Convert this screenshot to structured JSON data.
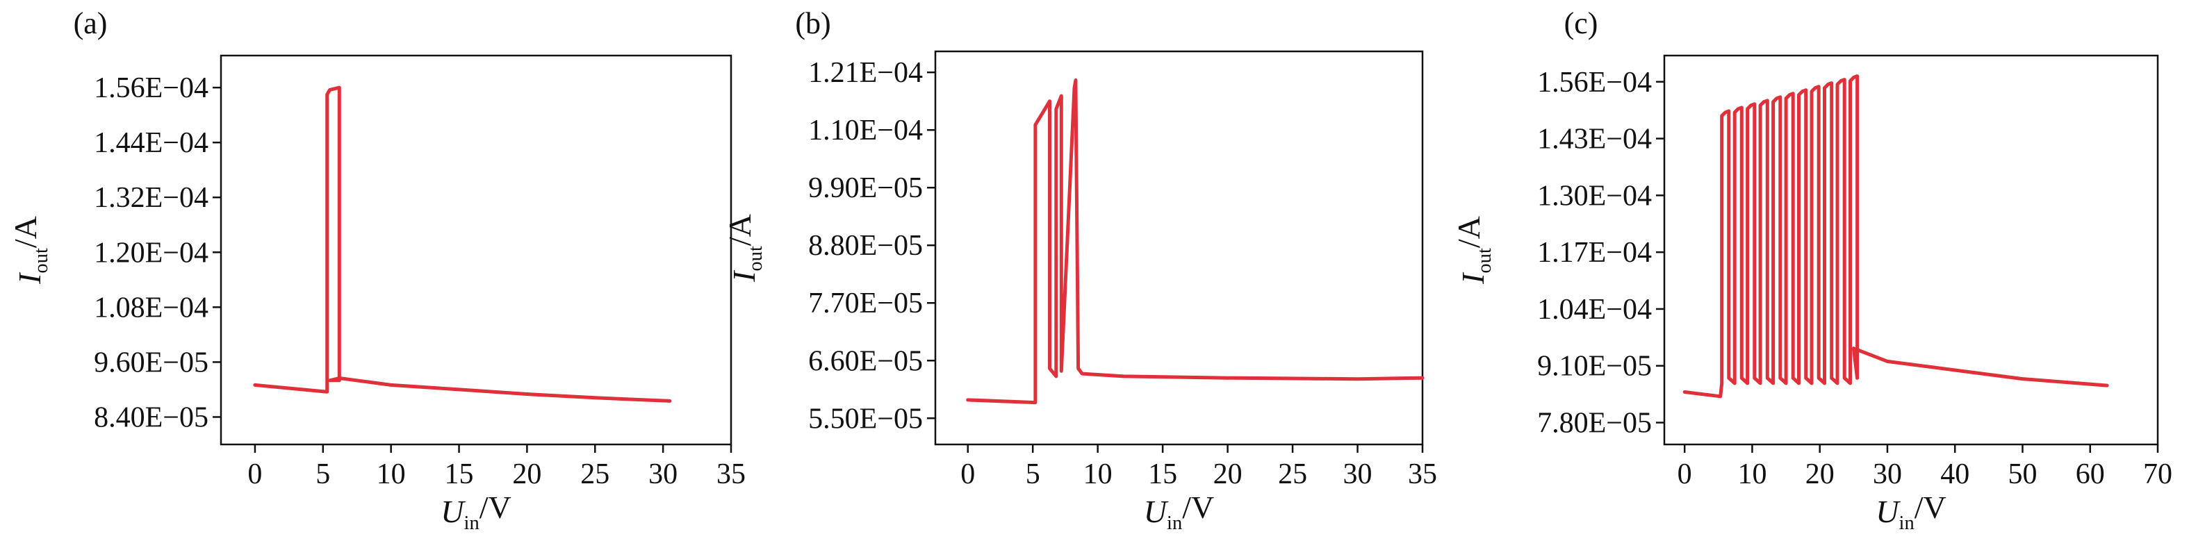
{
  "chart_data": [
    {
      "panel": "(a)",
      "type": "line",
      "xlabel": "U_in/V",
      "ylabel": "I_out/A",
      "xlim": [
        -2.5,
        35
      ],
      "ylim": [
        7.8e-05,
        0.000163
      ],
      "x_ticks": [
        "0",
        "5",
        "10",
        "15",
        "20",
        "25",
        "30",
        "35"
      ],
      "y_ticks": [
        "8.40E−05",
        "9.60E−05",
        "1.08E−04",
        "1.20E−04",
        "1.32E−04",
        "1.44E−04",
        "1.56E−04"
      ],
      "grid": false,
      "line_color": "#e0303a",
      "series": [
        {
          "x": [
            0,
            5.3,
            5.3,
            5.5,
            6.2,
            6.2,
            5.5,
            5.5,
            6.2,
            6.2,
            10,
            15,
            20,
            25,
            30.5
          ],
          "y": [
            9.1e-05,
            8.95e-05,
            0.0001545,
            0.0001555,
            0.000156,
            9.25e-05,
            9.2e-05,
            9.2e-05,
            9.2e-05,
            9.25e-05,
            9.1e-05,
            9e-05,
            8.9e-05,
            8.82e-05,
            8.75e-05
          ]
        }
      ]
    },
    {
      "panel": "(b)",
      "type": "line",
      "xlabel": "U_in/V",
      "ylabel": "I_out/A",
      "xlim": [
        -2.5,
        35
      ],
      "ylim": [
        5e-05,
        0.000125
      ],
      "x_ticks": [
        "0",
        "5",
        "10",
        "15",
        "20",
        "25",
        "30",
        "35"
      ],
      "y_ticks": [
        "5.50E−05",
        "6.60E−05",
        "7.70E−05",
        "8.80E−05",
        "9.90E−05",
        "1.10E−04",
        "1.21E−04"
      ],
      "grid": false,
      "line_color": "#e0303a",
      "series": [
        {
          "x": [
            0,
            5.2,
            5.2,
            6.3,
            6.3,
            6.8,
            6.8,
            7.2,
            7.2,
            8.2,
            8.3,
            8.5,
            8.8,
            12,
            20,
            30,
            35
          ],
          "y": [
            5.85e-05,
            5.8e-05,
            0.000111,
            0.0001155,
            6.45e-05,
            6.3e-05,
            0.000114,
            0.0001165,
            6.4e-05,
            0.000118,
            0.0001195,
            6.45e-05,
            6.35e-05,
            6.3e-05,
            6.27e-05,
            6.25e-05,
            6.27e-05
          ]
        }
      ]
    },
    {
      "panel": "(c)",
      "type": "line",
      "xlabel": "U_in/V",
      "ylabel": "I_out/A",
      "xlim": [
        -3,
        70
      ],
      "ylim": [
        7.3e-05,
        0.000162
      ],
      "x_ticks": [
        "0",
        "10",
        "20",
        "30",
        "40",
        "50",
        "60",
        "70"
      ],
      "y_ticks": [
        "7.80E−05",
        "9.10E−05",
        "1.04E−04",
        "1.17E−04",
        "1.30E−04",
        "1.43E−04",
        "1.56E−04"
      ],
      "grid": false,
      "line_color": "#e0303a",
      "pulse_train": {
        "count": 11,
        "start_x": 5.5,
        "end_x": 24.5,
        "low_y": 8.7e-05,
        "peak_y_first": 0.000149,
        "peak_y_last": 0.000157
      },
      "series": [
        {
          "x": [
            0,
            5.3,
            25,
            30,
            40,
            50,
            62.5
          ],
          "y": [
            8.5e-05,
            8.4e-05,
            9.5e-05,
            9.2e-05,
            9e-05,
            8.8e-05,
            8.65e-05
          ]
        }
      ]
    }
  ]
}
